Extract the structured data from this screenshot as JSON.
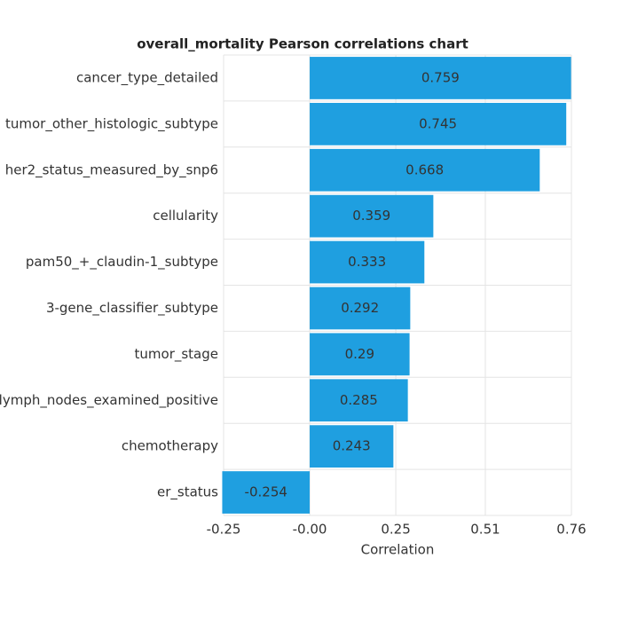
{
  "chart_data": {
    "type": "barh",
    "title": "overall_mortality Pearson correlations chart",
    "x_label": "Correlation",
    "categories": [
      "cancer_type_detailed",
      "tumor_other_histologic_subtype",
      "her2_status_measured_by_snp6",
      "cellularity",
      "pam50_+_claudin-1_subtype",
      "3-gene_classifier_subtype",
      "tumor_stage",
      "lymph_nodes_examined_positive",
      "chemotherapy",
      "er_status"
    ],
    "values": [
      0.759,
      0.745,
      0.668,
      0.359,
      0.333,
      0.292,
      0.29,
      0.285,
      0.243,
      -0.254
    ],
    "color": "#1f9fe0",
    "xlim": [
      -0.25,
      0.76
    ],
    "xticks": [
      -0.25,
      {
        "value": 0,
        "label": "-0.00"
      },
      0.25,
      0.51,
      0.76
    ],
    "grid": true
  }
}
